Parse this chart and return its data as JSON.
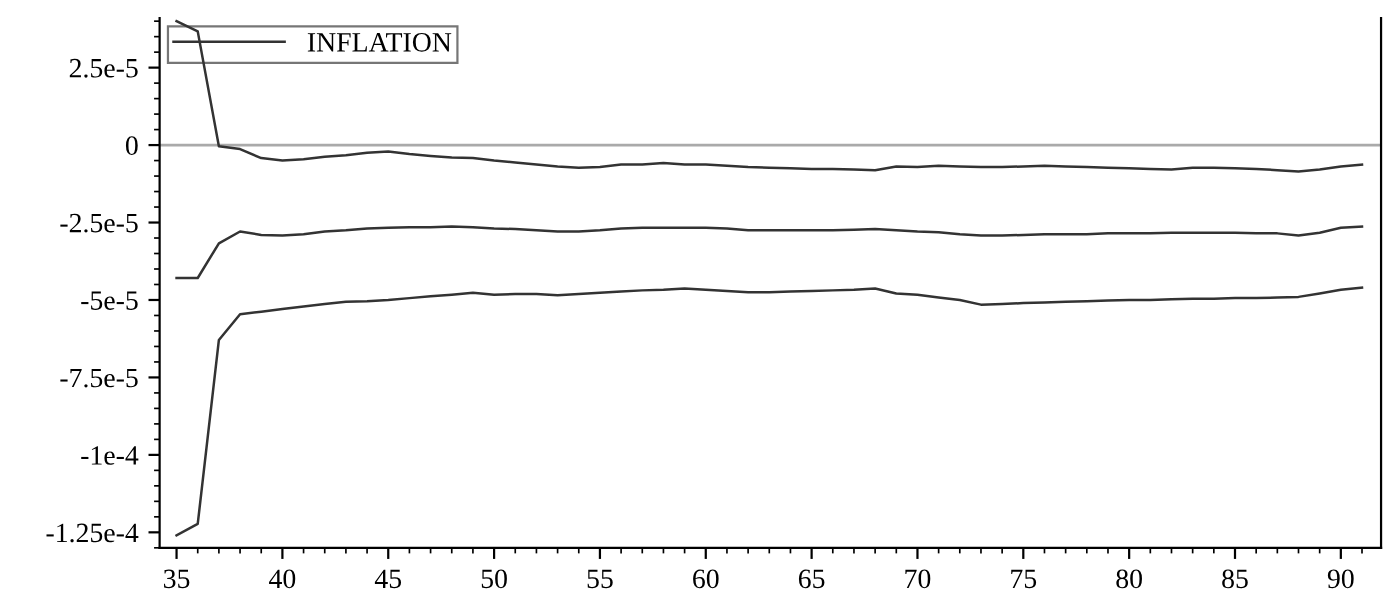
{
  "chart_data": {
    "type": "line",
    "x": [
      35,
      36,
      37,
      38,
      39,
      40,
      41,
      42,
      43,
      44,
      45,
      46,
      47,
      48,
      49,
      50,
      51,
      52,
      53,
      54,
      55,
      56,
      57,
      58,
      59,
      60,
      61,
      62,
      63,
      64,
      65,
      66,
      67,
      68,
      69,
      70,
      71,
      72,
      73,
      74,
      75,
      76,
      77,
      78,
      79,
      80,
      81,
      82,
      83,
      84,
      85,
      86,
      87,
      88,
      89,
      90,
      91
    ],
    "series": [
      {
        "color": "#333333",
        "values": [
          4e-05,
          3.67e-05,
          -4e-07,
          -1.3e-06,
          -4.2e-06,
          -5e-06,
          -4.6e-06,
          -3.8e-06,
          -3.3e-06,
          -2.5e-06,
          -2.1e-06,
          -2.9e-06,
          -3.5e-06,
          -4e-06,
          -4.2e-06,
          -5e-06,
          -5.6e-06,
          -6.3e-06,
          -6.9e-06,
          -7.3e-06,
          -7.1e-06,
          -6.3e-06,
          -6.3e-06,
          -5.8e-06,
          -6.3e-06,
          -6.3e-06,
          -6.7e-06,
          -7.1e-06,
          -7.3e-06,
          -7.5e-06,
          -7.7e-06,
          -7.7e-06,
          -7.9e-06,
          -8.1e-06,
          -6.9e-06,
          -7.1e-06,
          -6.7e-06,
          -6.9e-06,
          -7.1e-06,
          -7.1e-06,
          -6.9e-06,
          -6.7e-06,
          -6.9e-06,
          -7.1e-06,
          -7.3e-06,
          -7.5e-06,
          -7.7e-06,
          -7.9e-06,
          -7.3e-06,
          -7.3e-06,
          -7.5e-06,
          -7.7e-06,
          -8.1e-06,
          -8.5e-06,
          -7.9e-06,
          -6.9e-06,
          -6.3e-06
        ]
      },
      {
        "name": "INFLATION",
        "color": "#333333",
        "values": [
          -4.29e-05,
          -4.29e-05,
          -3.17e-05,
          -2.79e-05,
          -2.9e-05,
          -2.92e-05,
          -2.88e-05,
          -2.79e-05,
          -2.75e-05,
          -2.69e-05,
          -2.67e-05,
          -2.65e-05,
          -2.65e-05,
          -2.63e-05,
          -2.65e-05,
          -2.69e-05,
          -2.71e-05,
          -2.75e-05,
          -2.79e-05,
          -2.79e-05,
          -2.75e-05,
          -2.69e-05,
          -2.67e-05,
          -2.67e-05,
          -2.67e-05,
          -2.67e-05,
          -2.69e-05,
          -2.75e-05,
          -2.75e-05,
          -2.75e-05,
          -2.75e-05,
          -2.75e-05,
          -2.73e-05,
          -2.71e-05,
          -2.75e-05,
          -2.79e-05,
          -2.81e-05,
          -2.88e-05,
          -2.92e-05,
          -2.92e-05,
          -2.9e-05,
          -2.88e-05,
          -2.88e-05,
          -2.88e-05,
          -2.85e-05,
          -2.85e-05,
          -2.85e-05,
          -2.83e-05,
          -2.83e-05,
          -2.83e-05,
          -2.83e-05,
          -2.85e-05,
          -2.85e-05,
          -2.92e-05,
          -2.83e-05,
          -2.67e-05,
          -2.63e-05
        ]
      },
      {
        "color": "#333333",
        "values": [
          -0.000126,
          -0.0001223,
          -6.29e-05,
          -5.46e-05,
          -5.38e-05,
          -5.29e-05,
          -5.21e-05,
          -5.13e-05,
          -5.06e-05,
          -5.04e-05,
          -5e-05,
          -4.94e-05,
          -4.88e-05,
          -4.83e-05,
          -4.77e-05,
          -4.83e-05,
          -4.81e-05,
          -4.81e-05,
          -4.85e-05,
          -4.81e-05,
          -4.77e-05,
          -4.73e-05,
          -4.69e-05,
          -4.67e-05,
          -4.63e-05,
          -4.67e-05,
          -4.71e-05,
          -4.75e-05,
          -4.75e-05,
          -4.73e-05,
          -4.71e-05,
          -4.69e-05,
          -4.67e-05,
          -4.63e-05,
          -4.79e-05,
          -4.83e-05,
          -4.92e-05,
          -5e-05,
          -5.15e-05,
          -5.13e-05,
          -5.1e-05,
          -5.08e-05,
          -5.06e-05,
          -5.04e-05,
          -5.02e-05,
          -5e-05,
          -5e-05,
          -4.98e-05,
          -4.96e-05,
          -4.96e-05,
          -4.94e-05,
          -4.94e-05,
          -4.92e-05,
          -4.9e-05,
          -4.79e-05,
          -4.67e-05,
          -4.6e-05
        ]
      }
    ],
    "xlim": [
      34.2,
      91.9
    ],
    "ylim": [
      -0.00013,
      4.1e-05
    ],
    "xticks": [
      35,
      40,
      45,
      50,
      55,
      60,
      65,
      70,
      75,
      80,
      85,
      90
    ],
    "yticks": [
      {
        "value": 2.5e-05,
        "label": "2.5e-5"
      },
      0,
      {
        "value": -2.5e-05,
        "label": "-2.5e-5"
      },
      {
        "value": -5e-05,
        "label": "-5e-5"
      },
      {
        "value": -7.5e-05,
        "label": "-7.5e-5"
      },
      {
        "value": -0.0001,
        "label": "-1e-4"
      },
      {
        "value": -0.000125,
        "label": "-1.25e-4"
      }
    ],
    "ref_lines": [
      {
        "axis": "y",
        "value": 0,
        "color": "#aaaaaa"
      }
    ],
    "legend": "top left",
    "grid": false,
    "marker": "none",
    "line_style": "solid"
  }
}
